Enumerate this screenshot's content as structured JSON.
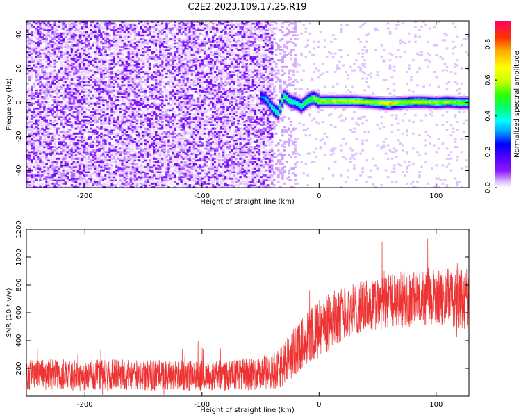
{
  "figure_title": "C2E2.2023.109.17.25.R19",
  "chart_data": [
    {
      "type": "heatmap",
      "xlabel": "Height of straight line (km)",
      "ylabel": "Frequency (Hz)",
      "xlim": [
        -250,
        128
      ],
      "ylim": [
        -50,
        48
      ],
      "xticks": [
        -200,
        -100,
        0,
        100
      ],
      "yticks": [
        -40,
        -20,
        0,
        20,
        40
      ],
      "grid": false,
      "colorbar": {
        "label": "Normalized spectral amplitude",
        "range": [
          0,
          0.93
        ],
        "ticks": [
          0.0,
          0.2,
          0.4,
          0.6,
          0.8
        ],
        "colormap": [
          "#ffffff",
          "#d9b3ff",
          "#8c1aff",
          "#6a00ff",
          "#0000ff",
          "#00aaff",
          "#00ffff",
          "#00ff66",
          "#33ff00",
          "#ccff00",
          "#ffff00",
          "#ffaa00",
          "#ff3300",
          "#ff0066"
        ]
      },
      "regions": [
        {
          "description": "broadband noise",
          "x": [
            -250,
            -40
          ],
          "y": [
            -50,
            48
          ],
          "amplitude": [
            0.0,
            0.15
          ]
        },
        {
          "description": "faint noise",
          "x": [
            -40,
            -20
          ],
          "y": [
            -50,
            48
          ],
          "amplitude": [
            0.0,
            0.06
          ]
        }
      ],
      "ridge": {
        "x": [
          -50,
          -45,
          -40,
          -35,
          -30,
          -25,
          -20,
          -15,
          -10,
          -5,
          0,
          10,
          20,
          30,
          40,
          50,
          60,
          70,
          80,
          90,
          100,
          110,
          120,
          128
        ],
        "y": [
          4,
          2,
          -3,
          -6,
          4,
          1,
          0,
          -2,
          1,
          3,
          1,
          1,
          1,
          1,
          0.5,
          0,
          -0.5,
          0,
          0.5,
          0.5,
          0,
          0.5,
          0,
          0
        ],
        "amplitude": [
          0.3,
          0.35,
          0.4,
          0.45,
          0.5,
          0.45,
          0.4,
          0.45,
          0.5,
          0.55,
          0.6,
          0.6,
          0.62,
          0.62,
          0.6,
          0.62,
          0.75,
          0.6,
          0.62,
          0.6,
          0.6,
          0.58,
          0.58,
          0.55
        ]
      }
    },
    {
      "type": "line",
      "xlabel": "Height of straight line (km)",
      "ylabel": "SNR (10 * v/v)",
      "xlim": [
        -250,
        128
      ],
      "ylim": [
        0,
        1200
      ],
      "xticks": [
        -200,
        -100,
        0,
        100
      ],
      "yticks": [
        200,
        400,
        600,
        800,
        1000,
        1200
      ],
      "grid": false,
      "series": [
        {
          "color": "#ee3333",
          "x": [
            -250,
            -225,
            -200,
            -175,
            -150,
            -125,
            -100,
            -75,
            -50,
            -40,
            -30,
            -20,
            -10,
            0,
            10,
            20,
            30,
            40,
            50,
            60,
            70,
            80,
            90,
            100,
            110,
            120,
            128
          ],
          "mean": [
            150,
            155,
            150,
            155,
            150,
            150,
            145,
            150,
            160,
            175,
            230,
            330,
            420,
            480,
            540,
            600,
            630,
            650,
            660,
            680,
            690,
            700,
            700,
            710,
            710,
            700,
            700
          ],
          "spread": [
            110,
            110,
            115,
            110,
            110,
            110,
            110,
            110,
            120,
            130,
            160,
            180,
            190,
            210,
            210,
            200,
            190,
            190,
            190,
            200,
            200,
            200,
            200,
            200,
            210,
            220,
            220
          ]
        }
      ]
    }
  ]
}
